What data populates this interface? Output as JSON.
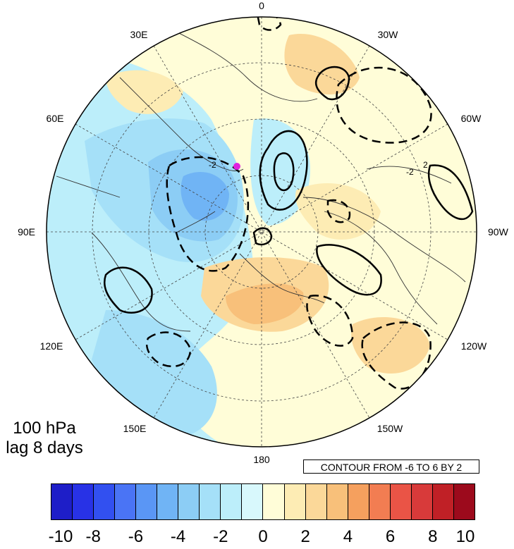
{
  "panel": {
    "level": "100 hPa",
    "lag": "lag 8 days"
  },
  "contour_note": "CONTOUR FROM -6 TO 6 BY 2",
  "longitude_labels": {
    "top": "0",
    "bottom": "180",
    "left": "90E",
    "right": "90W",
    "upper_left_1": "30E",
    "upper_left_2": "60E",
    "lower_left_1": "120E",
    "lower_left_2": "150E",
    "upper_right_1": "30W",
    "upper_right_2": "60W",
    "lower_right_1": "120W",
    "lower_right_2": "150W"
  },
  "contour_labels": {
    "a": "-2",
    "b": "-2",
    "c": "2"
  },
  "colorbar": {
    "colors": [
      "#1e1ec8",
      "#2832e6",
      "#3250f0",
      "#4a74f5",
      "#5a96f5",
      "#70b4f5",
      "#8ccdf5",
      "#a5e0f8",
      "#bceefa",
      "#d8f8fc",
      "#fffdd8",
      "#fdecb4",
      "#fbd899",
      "#f8c07a",
      "#f5a05e",
      "#f27d52",
      "#ea5446",
      "#d83a3a",
      "#c02026",
      "#9c0a1c"
    ],
    "ticks": [
      "-10",
      "-8",
      "-6",
      "-4",
      "-2",
      "0",
      "2",
      "4",
      "6",
      "8",
      "10"
    ]
  }
}
